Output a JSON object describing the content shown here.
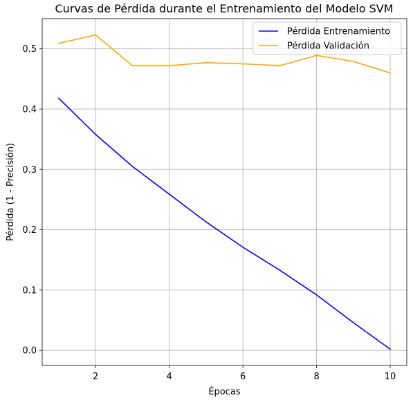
{
  "chart_data": {
    "type": "line",
    "title": "Curvas de Pérdida durante el Entrenamiento del Modelo SVM",
    "xlabel": "Épocas",
    "ylabel": "Pérdida (1 - Precisión)",
    "x": [
      1,
      2,
      3,
      4,
      5,
      6,
      7,
      8,
      9,
      10
    ],
    "xlim": [
      0.55,
      10.45
    ],
    "ylim": [
      -0.025,
      0.55
    ],
    "xticks": [
      2,
      4,
      6,
      8,
      10
    ],
    "yticks": [
      0.0,
      0.1,
      0.2,
      0.3,
      0.4,
      0.5
    ],
    "ytick_labels": [
      "0.0",
      "0.1",
      "0.2",
      "0.3",
      "0.4",
      "0.5"
    ],
    "grid": true,
    "legend_position": "top-right",
    "series": [
      {
        "name": "Pérdida Entrenamiento",
        "color": "#0000ff",
        "values": [
          0.418,
          0.358,
          0.305,
          0.259,
          0.213,
          0.171,
          0.133,
          0.092,
          0.046,
          0.002
        ]
      },
      {
        "name": "Pérdida Validación",
        "color": "#ffa500",
        "values": [
          0.509,
          0.523,
          0.472,
          0.472,
          0.477,
          0.475,
          0.472,
          0.489,
          0.479,
          0.46
        ]
      }
    ]
  }
}
